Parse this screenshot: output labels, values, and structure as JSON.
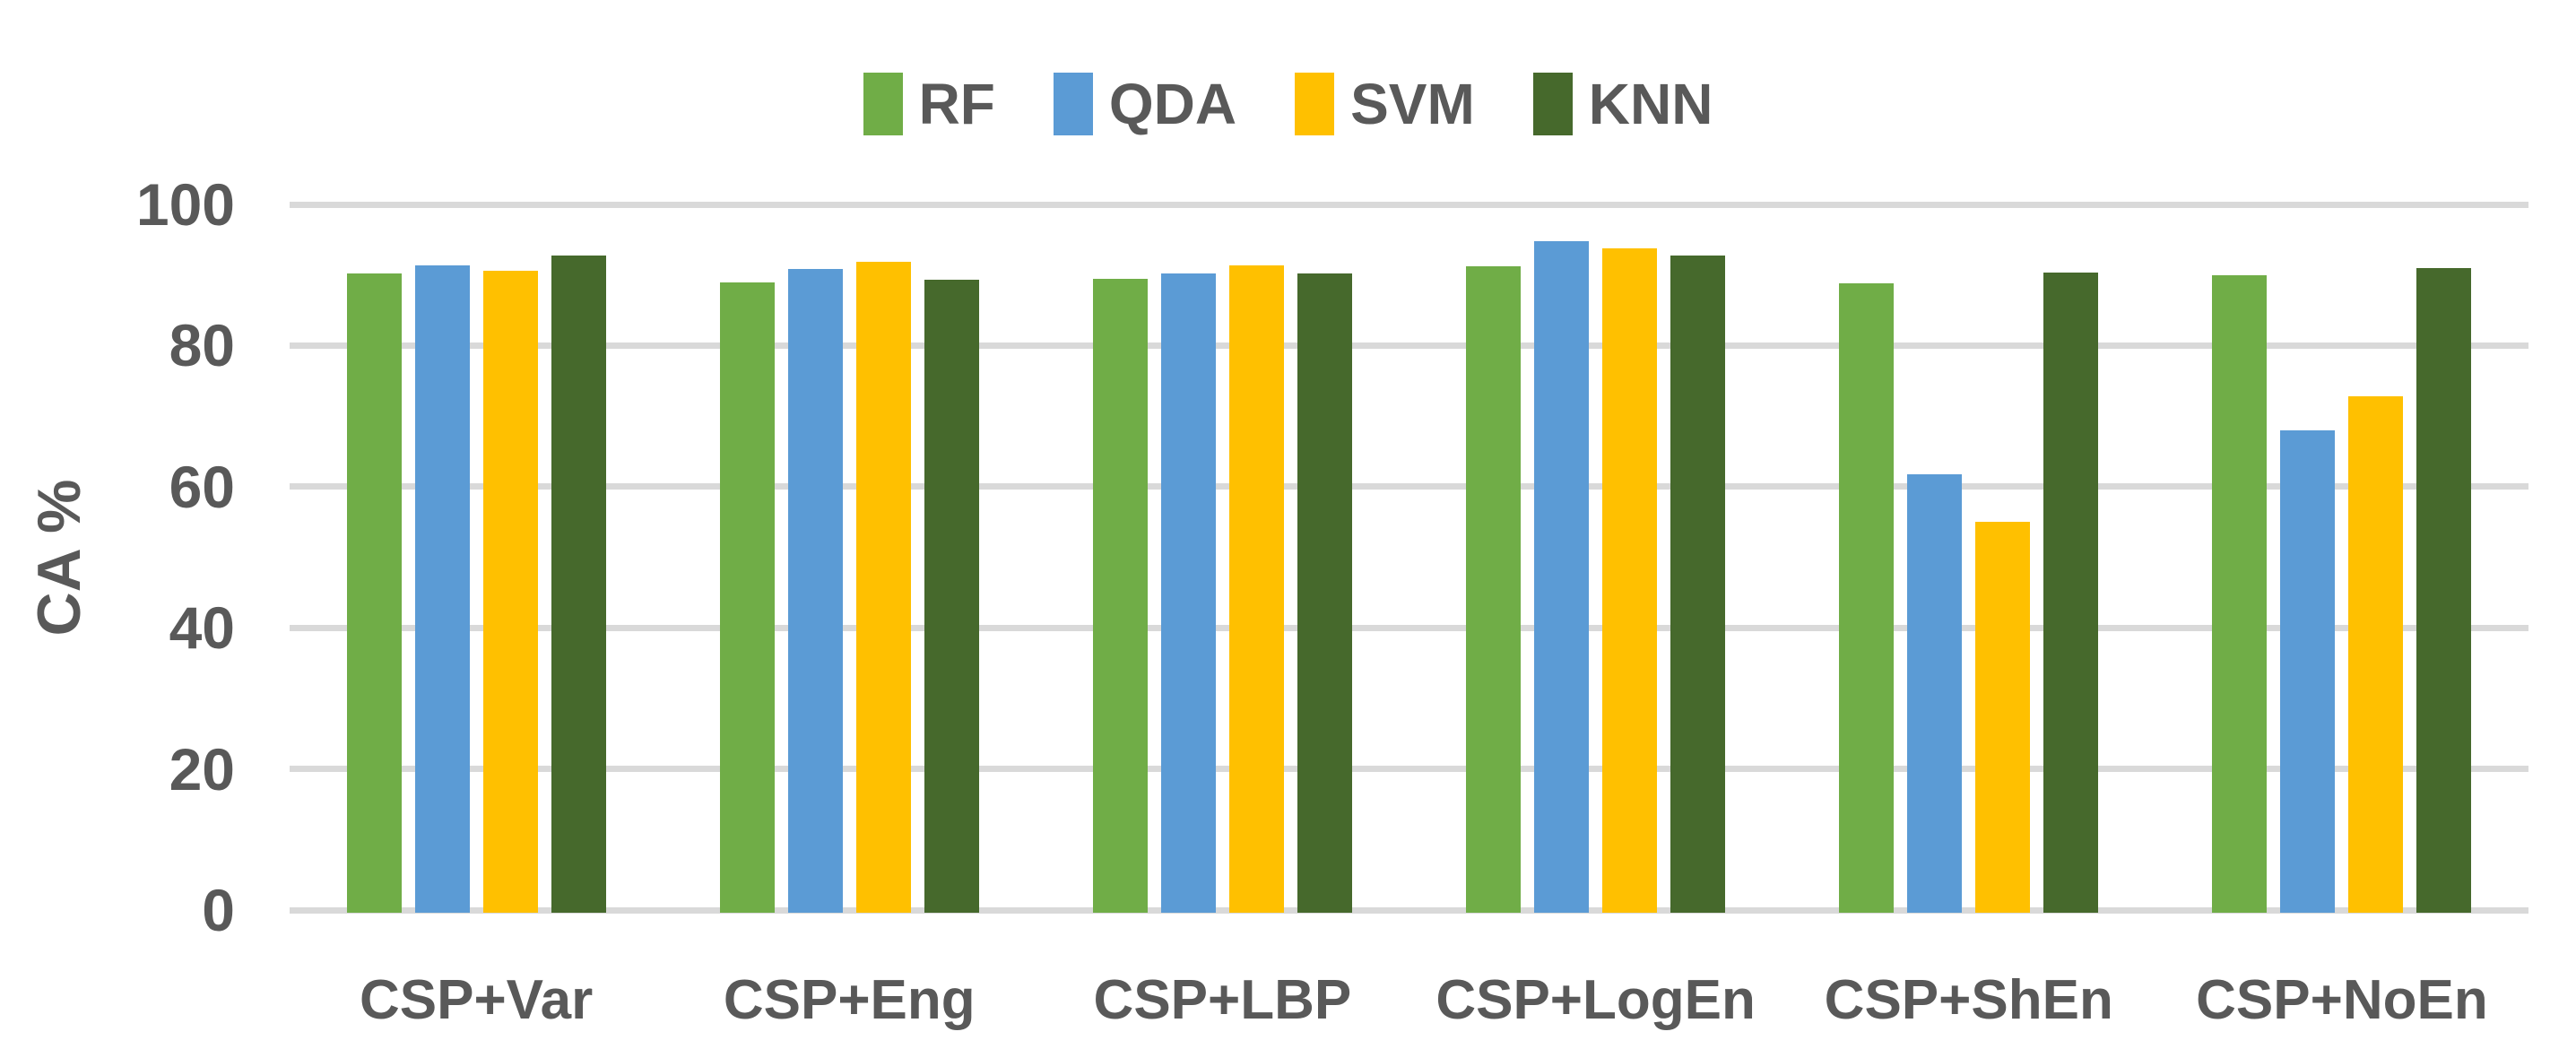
{
  "chart_data": {
    "type": "bar",
    "title": "",
    "xlabel": "",
    "ylabel": "CA %",
    "ylim": [
      0,
      100
    ],
    "yticks": [
      0,
      20,
      40,
      60,
      80,
      100
    ],
    "grid": true,
    "legend_position": "top-center",
    "background_color": "#FFFFFF",
    "gridline_color": "#D9D9D9",
    "text_color": "#595959",
    "categories": [
      "CSP+Var",
      "CSP+Eng",
      "CSP+LBP",
      "CSP+LogEn",
      "CSP+ShEn",
      "CSP+NoEn"
    ],
    "series": [
      {
        "name": "RF",
        "color": "#70AD47",
        "values": [
          90.2,
          89.0,
          89.4,
          91.2,
          88.8,
          90.0
        ]
      },
      {
        "name": "QDA",
        "color": "#5B9BD5",
        "values": [
          91.3,
          90.9,
          90.2,
          94.8,
          61.8,
          68.0
        ]
      },
      {
        "name": "SVM",
        "color": "#FFC000",
        "values": [
          90.6,
          91.9,
          91.4,
          93.8,
          55.0,
          72.8
        ]
      },
      {
        "name": "KNN",
        "color": "#46692C",
        "values": [
          92.8,
          89.3,
          90.2,
          92.8,
          90.3,
          91.0
        ]
      }
    ]
  }
}
